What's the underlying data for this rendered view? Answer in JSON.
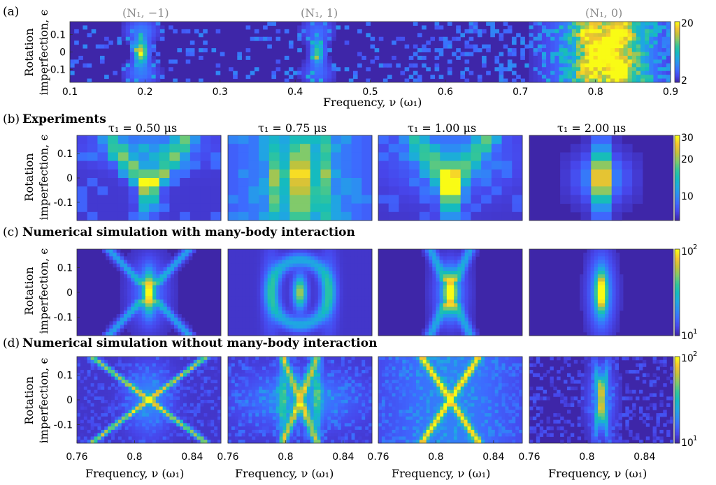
{
  "figure": {
    "panel_a": {
      "label": "(a)",
      "peak_labels": [
        "(N₁, −1)",
        "(N₁, 1)",
        "(N₁, 0)"
      ],
      "ylabel_line1": "Rotation",
      "ylabel_line2": "imperfection, ϵ",
      "xlabel": "Frequency, ν (ω₁)",
      "colorbar": {
        "min": "2",
        "max": "20"
      }
    },
    "panel_b": {
      "label": "(b)",
      "title": "Experiments",
      "tau_labels": [
        "τ₁ = 0.50 μs",
        "τ₁ = 0.75 μs",
        "τ₁ = 1.00 μs",
        "τ₁ = 2.00 μs"
      ],
      "colorbar": {
        "ticks": [
          "30",
          "20",
          "10"
        ]
      }
    },
    "panel_c": {
      "label": "(c)",
      "title": "Numerical simulation with many-body interaction",
      "colorbar": {
        "max_base": "10",
        "max_exp": "2",
        "min_base": "10",
        "min_exp": "1"
      }
    },
    "panel_d": {
      "label": "(d)",
      "title": "Numerical simulation without many-body interaction",
      "colorbar": {
        "max_base": "10",
        "max_exp": "2",
        "min_base": "10",
        "min_exp": "1"
      }
    },
    "shared_xlabel": "Frequency, ν (ω₁)",
    "colormap": [
      "#3e26a8",
      "#4746eb",
      "#3e69ff",
      "#2d8cf3",
      "#1ea9e0",
      "#14bcbd",
      "#33c59a",
      "#7fca6c",
      "#c4c23a",
      "#f5c530",
      "#f9fb15"
    ],
    "background_color": "#3e26a8"
  },
  "chart_data": [
    {
      "panel": "a",
      "type": "heatmap",
      "xlim": [
        0.1,
        0.9
      ],
      "ylim": [
        -0.175,
        0.175
      ],
      "x_ticks": [
        "0.1",
        "0.2",
        "0.3",
        "0.4",
        "0.5",
        "0.6",
        "0.7",
        "0.8",
        "0.9"
      ],
      "y_ticks": [
        "0.1",
        "0",
        "-0.1"
      ],
      "clim": [
        2,
        20
      ],
      "features": [
        {
          "center": 0.195,
          "type": "narrow peak",
          "peak": 12
        },
        {
          "center": 0.43,
          "type": "narrow peak",
          "peak": 9
        },
        {
          "center": 0.81,
          "type": "broad peak",
          "peak": 20
        }
      ]
    },
    {
      "panel": "b",
      "tau_us": 0.5,
      "type": "heatmap",
      "xlim": [
        0.76,
        0.86
      ],
      "ylim": [
        -0.175,
        0.175
      ],
      "center": 0.81,
      "clim": [
        5,
        30
      ],
      "pattern": "V-shaped arms, central peak below zero"
    },
    {
      "panel": "b",
      "tau_us": 0.75,
      "type": "heatmap",
      "xlim": [
        0.76,
        0.86
      ],
      "ylim": [
        -0.175,
        0.175
      ],
      "center": 0.81,
      "clim": [
        5,
        30
      ],
      "pattern": "vertical stripes, strong center"
    },
    {
      "panel": "b",
      "tau_us": 1.0,
      "type": "heatmap",
      "xlim": [
        0.76,
        0.86
      ],
      "ylim": [
        -0.175,
        0.175
      ],
      "center": 0.81,
      "clim": [
        5,
        30
      ],
      "pattern": "V-shaped arms, central peak"
    },
    {
      "panel": "b",
      "tau_us": 2.0,
      "type": "heatmap",
      "xlim": [
        0.76,
        0.86
      ],
      "ylim": [
        -0.175,
        0.175
      ],
      "center": 0.81,
      "clim": [
        5,
        30
      ],
      "pattern": "compact central peak"
    },
    {
      "panel": "c",
      "tau_us": 0.5,
      "type": "heatmap",
      "xlim": [
        0.76,
        0.86
      ],
      "ylim": [
        -0.175,
        0.175
      ],
      "center": 0.81,
      "clim": [
        10,
        100
      ],
      "scale": "log",
      "pattern": "X arms, central peak"
    },
    {
      "panel": "c",
      "tau_us": 0.75,
      "type": "heatmap",
      "xlim": [
        0.76,
        0.86
      ],
      "ylim": [
        -0.175,
        0.175
      ],
      "center": 0.81,
      "clim": [
        10,
        100
      ],
      "scale": "log",
      "pattern": "ring pattern, central peak"
    },
    {
      "panel": "c",
      "tau_us": 1.0,
      "type": "heatmap",
      "xlim": [
        0.76,
        0.86
      ],
      "ylim": [
        -0.175,
        0.175
      ],
      "center": 0.81,
      "clim": [
        10,
        100
      ],
      "scale": "log",
      "pattern": "X arms, central peak"
    },
    {
      "panel": "c",
      "tau_us": 2.0,
      "type": "heatmap",
      "xlim": [
        0.76,
        0.86
      ],
      "ylim": [
        -0.175,
        0.175
      ],
      "center": 0.81,
      "clim": [
        10,
        100
      ],
      "scale": "log",
      "pattern": "elliptical central peak"
    },
    {
      "panel": "d",
      "tau_us": 0.5,
      "type": "heatmap",
      "xlim": [
        0.76,
        0.86
      ],
      "ylim": [
        -0.175,
        0.175
      ],
      "center": 0.81,
      "clim": [
        10,
        100
      ],
      "scale": "log",
      "pattern": "wide X crossing",
      "x_ticks": [
        "0.76",
        "0.8",
        "0.84"
      ]
    },
    {
      "panel": "d",
      "tau_us": 0.75,
      "type": "heatmap",
      "xlim": [
        0.76,
        0.86
      ],
      "ylim": [
        -0.175,
        0.175
      ],
      "center": 0.81,
      "clim": [
        10,
        100
      ],
      "scale": "log",
      "pattern": "narrow X crossing",
      "x_ticks": [
        "0.76",
        "0.8",
        "0.84"
      ]
    },
    {
      "panel": "d",
      "tau_us": 1.0,
      "type": "heatmap",
      "xlim": [
        0.76,
        0.86
      ],
      "ylim": [
        -0.175,
        0.175
      ],
      "center": 0.81,
      "clim": [
        10,
        100
      ],
      "scale": "log",
      "pattern": "X crossing",
      "x_ticks": [
        "0.76",
        "0.8",
        "0.84"
      ]
    },
    {
      "panel": "d",
      "tau_us": 2.0,
      "type": "heatmap",
      "xlim": [
        0.76,
        0.86
      ],
      "ylim": [
        -0.175,
        0.175
      ],
      "center": 0.81,
      "clim": [
        10,
        100
      ],
      "scale": "log",
      "pattern": "small X crossing",
      "x_ticks": [
        "0.76",
        "0.8",
        "0.84"
      ]
    }
  ]
}
